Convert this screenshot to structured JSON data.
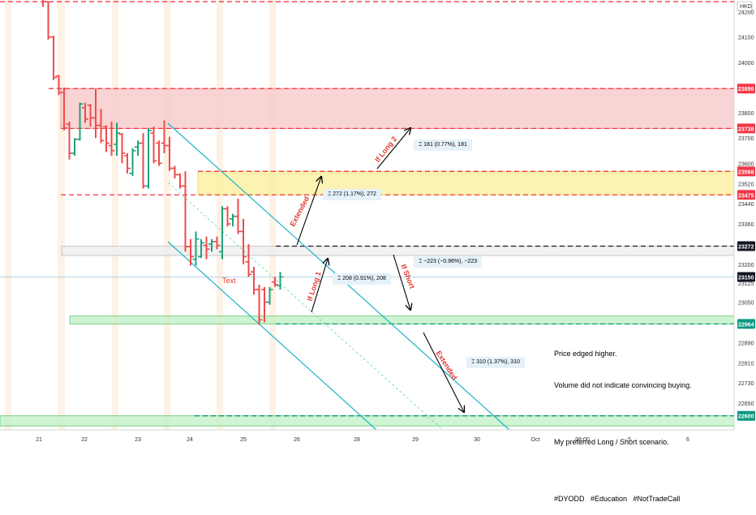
{
  "chart_data": {
    "type": "candlestick",
    "currency": "HKD",
    "ylim": [
      22560,
      24250
    ],
    "y_ticks": [
      24200,
      24100,
      24000,
      23800,
      23700,
      23600,
      23520,
      23440,
      23360,
      23200,
      23125,
      23050,
      22890,
      22810,
      22730,
      22650
    ],
    "x_ticks": [
      "21",
      "22",
      "23",
      "24",
      "25",
      "26",
      "28",
      "29",
      "30",
      "Oct",
      "08:00",
      "5",
      "6"
    ],
    "price_labels": [
      {
        "value": 23896,
        "color": "#f23645"
      },
      {
        "value": 23738,
        "color": "#f23645"
      },
      {
        "value": 23568,
        "color": "#f23645"
      },
      {
        "value": 23475,
        "color": "#f23645"
      },
      {
        "value": 23272,
        "color": "#131722"
      },
      {
        "value": 23150,
        "color": "#131722"
      },
      {
        "value": 22964,
        "color": "#089981"
      },
      {
        "value": 22600,
        "color": "#089981"
      }
    ],
    "levels": [
      {
        "value": 24240,
        "color": "#f23645"
      },
      {
        "value": 23896,
        "color": "#f23645"
      },
      {
        "value": 23738,
        "color": "#f23645"
      },
      {
        "value": 23568,
        "color": "#f23645"
      },
      {
        "value": 23475,
        "color": "#f23645"
      },
      {
        "value": 23272,
        "color": "#131722"
      },
      {
        "value": 22964,
        "color": "#089981"
      },
      {
        "value": 22600,
        "color": "#089981"
      }
    ],
    "zones": [
      {
        "from": 23738,
        "to": 23896,
        "color": "red"
      },
      {
        "from": 23475,
        "to": 23568,
        "color": "yellow"
      },
      {
        "from": 23235,
        "to": 23272,
        "color": "gray"
      },
      {
        "from": 22964,
        "to": 22995,
        "color": "green"
      },
      {
        "from": 22560,
        "to": 22600,
        "color": "green"
      }
    ],
    "bars": [
      {
        "o": 24270,
        "h": 24290,
        "l": 24250,
        "c": 24260
      },
      {
        "o": 24270,
        "h": 24280,
        "l": 24220,
        "c": 24240
      },
      {
        "o": 24240,
        "h": 24240,
        "l": 24090,
        "c": 24100
      },
      {
        "o": 24100,
        "h": 24105,
        "l": 23930,
        "c": 23940
      },
      {
        "o": 23945,
        "h": 23950,
        "l": 23870,
        "c": 23880
      },
      {
        "o": 23880,
        "h": 23900,
        "l": 23730,
        "c": 23740
      },
      {
        "o": 23755,
        "h": 23765,
        "l": 23615,
        "c": 23640
      },
      {
        "o": 23640,
        "h": 23700,
        "l": 23630,
        "c": 23695
      },
      {
        "o": 23695,
        "h": 23840,
        "l": 23690,
        "c": 23835
      },
      {
        "o": 23820,
        "h": 23840,
        "l": 23760,
        "c": 23775
      },
      {
        "o": 23830,
        "h": 23835,
        "l": 23745,
        "c": 23780
      },
      {
        "o": 23780,
        "h": 23895,
        "l": 23700,
        "c": 23750
      },
      {
        "o": 23750,
        "h": 23815,
        "l": 23680,
        "c": 23690
      },
      {
        "o": 23745,
        "h": 23750,
        "l": 23645,
        "c": 23680
      },
      {
        "o": 23670,
        "h": 23765,
        "l": 23630,
        "c": 23650
      },
      {
        "o": 23675,
        "h": 23760,
        "l": 23630,
        "c": 23720
      },
      {
        "o": 23715,
        "h": 23720,
        "l": 23600,
        "c": 23640
      },
      {
        "o": 23630,
        "h": 23640,
        "l": 23560,
        "c": 23580
      },
      {
        "o": 23560,
        "h": 23660,
        "l": 23550,
        "c": 23650
      },
      {
        "o": 23665,
        "h": 23690,
        "l": 23630,
        "c": 23680
      },
      {
        "o": 23680,
        "h": 23720,
        "l": 23500,
        "c": 23510
      },
      {
        "o": 23510,
        "h": 23740,
        "l": 23500,
        "c": 23730
      },
      {
        "o": 23720,
        "h": 23745,
        "l": 23600,
        "c": 23610
      },
      {
        "o": 23680,
        "h": 23690,
        "l": 23590,
        "c": 23600
      },
      {
        "o": 23680,
        "h": 23770,
        "l": 23640,
        "c": 23670
      },
      {
        "o": 23670,
        "h": 23705,
        "l": 23570,
        "c": 23580
      },
      {
        "o": 23580,
        "h": 23590,
        "l": 23540,
        "c": 23555
      },
      {
        "o": 23555,
        "h": 23560,
        "l": 23500,
        "c": 23510
      },
      {
        "o": 23510,
        "h": 23568,
        "l": 23250,
        "c": 23270
      },
      {
        "o": 23270,
        "h": 23300,
        "l": 23195,
        "c": 23230
      },
      {
        "o": 23220,
        "h": 23330,
        "l": 23195,
        "c": 23300
      },
      {
        "o": 23230,
        "h": 23300,
        "l": 23225,
        "c": 23285
      },
      {
        "o": 23275,
        "h": 23310,
        "l": 23220,
        "c": 23260
      },
      {
        "o": 23280,
        "h": 23300,
        "l": 23250,
        "c": 23290
      },
      {
        "o": 23290,
        "h": 23310,
        "l": 23260,
        "c": 23275
      },
      {
        "o": 23250,
        "h": 23430,
        "l": 23220,
        "c": 23420
      },
      {
        "o": 23420,
        "h": 23430,
        "l": 23350,
        "c": 23360
      },
      {
        "o": 23380,
        "h": 23400,
        "l": 23350,
        "c": 23390
      },
      {
        "o": 23390,
        "h": 23460,
        "l": 23320,
        "c": 23330
      },
      {
        "o": 23330,
        "h": 23380,
        "l": 23200,
        "c": 23230
      },
      {
        "o": 23210,
        "h": 23280,
        "l": 23150,
        "c": 23160
      },
      {
        "o": 23170,
        "h": 23190,
        "l": 23080,
        "c": 23100
      },
      {
        "o": 23100,
        "h": 23120,
        "l": 22960,
        "c": 22980
      },
      {
        "o": 23100,
        "h": 23110,
        "l": 22970,
        "c": 23050
      },
      {
        "o": 23050,
        "h": 23110,
        "l": 23040,
        "c": 23100
      },
      {
        "o": 23130,
        "h": 23150,
        "l": 23110,
        "c": 23120
      },
      {
        "o": 23115,
        "h": 23170,
        "l": 23100,
        "c": 23150
      }
    ],
    "annotations": {
      "text_marker": "Text",
      "note_lines": [
        "Price edged higher.",
        "Volume did not indicate convincing buying.",
        "",
        "My preferred Long / Short scenario.",
        "",
        "#DYODD   #Education   #NotTradeCall"
      ],
      "arrow_labels": [
        "Extended",
        "If Long 2",
        "If Long 1",
        "If Short",
        "Extended"
      ],
      "measures": [
        "181 (0.77%), 181",
        "272 (1.17%), 272",
        "208 (0.91%), 208",
        "−223 (−0.96%), −223",
        "310 (1.37%), 310"
      ]
    }
  }
}
